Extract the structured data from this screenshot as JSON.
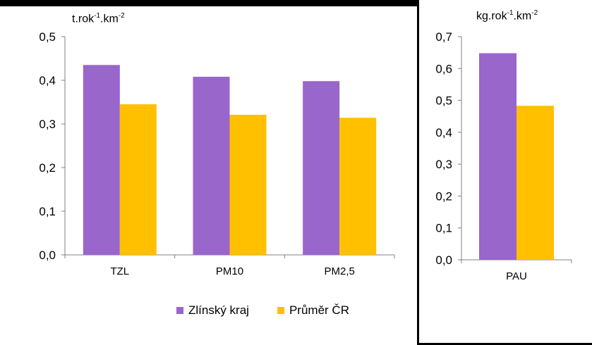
{
  "colors": {
    "series1": "#9966CC",
    "series2": "#FFC000",
    "axis": "#808080"
  },
  "chart_data": [
    {
      "type": "bar",
      "ylabel": "t.rok-1.km-2",
      "ylim": [
        0,
        0.5
      ],
      "yticks": [
        "0,0",
        "0,1",
        "0,2",
        "0,3",
        "0,4",
        "0,5"
      ],
      "categories": [
        "TZL",
        "PM10",
        "PM2,5"
      ],
      "series": [
        {
          "name": "Zlínský kraj",
          "values": [
            0.435,
            0.408,
            0.398
          ]
        },
        {
          "name": "Průměr ČR",
          "values": [
            0.345,
            0.321,
            0.314
          ]
        }
      ],
      "grid": false,
      "legend": "bottom"
    },
    {
      "type": "bar",
      "ylabel": "kg.rok-1.km-2",
      "ylim": [
        0,
        0.7
      ],
      "yticks": [
        "0,0",
        "0,1",
        "0,2",
        "0,3",
        "0,4",
        "0,5",
        "0,6",
        "0,7"
      ],
      "categories": [
        "PAU"
      ],
      "series": [
        {
          "name": "Zlínský kraj",
          "values": [
            0.648
          ]
        },
        {
          "name": "Průměr ČR",
          "values": [
            0.483
          ]
        }
      ],
      "grid": false
    }
  ],
  "units": {
    "left": {
      "base": "t.rok",
      "exp1": "-1",
      "mid": ".km",
      "exp2": "-2"
    },
    "right": {
      "base": "kg.rok",
      "exp1": "-1",
      "mid": ".km",
      "exp2": "-2"
    }
  },
  "legend": {
    "items": [
      "Zlínský kraj",
      "Průměr ČR"
    ]
  }
}
